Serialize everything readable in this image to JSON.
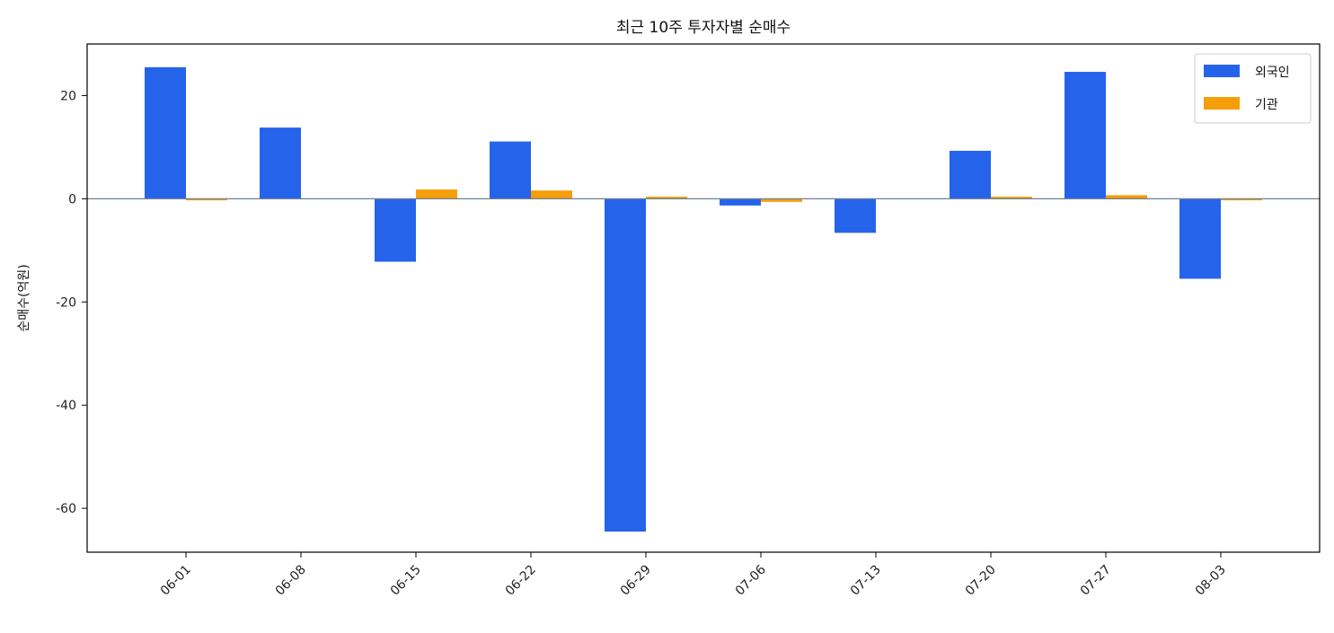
{
  "chart_data": {
    "type": "bar",
    "title": "최근 10주 투자자별 순매수",
    "xlabel": "",
    "ylabel": "순매수(억원)",
    "categories": [
      "06-01",
      "06-08",
      "06-15",
      "06-22",
      "06-29",
      "07-06",
      "07-13",
      "07-20",
      "07-27",
      "08-03"
    ],
    "series": [
      {
        "name": "외국인",
        "color": "#2563eb",
        "values": [
          25.5,
          13.8,
          -12.2,
          11.1,
          -64.5,
          -1.3,
          -6.6,
          9.3,
          24.6,
          -15.5
        ]
      },
      {
        "name": "기관",
        "color": "#f59e0b",
        "values": [
          -0.3,
          0.0,
          1.8,
          1.6,
          0.4,
          -0.6,
          0.0,
          0.4,
          0.7,
          -0.3
        ]
      }
    ],
    "ylim": [
      -68.5,
      30
    ],
    "yticks": [
      -60,
      -40,
      -20,
      0,
      20
    ],
    "zero_line_color": "#708090",
    "grid": false,
    "legend_position": "top-right"
  }
}
